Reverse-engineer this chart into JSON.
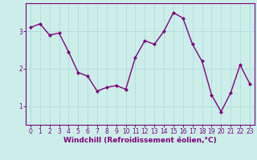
{
  "x": [
    0,
    1,
    2,
    3,
    4,
    5,
    6,
    7,
    8,
    9,
    10,
    11,
    12,
    13,
    14,
    15,
    16,
    17,
    18,
    19,
    20,
    21,
    22,
    23
  ],
  "y": [
    3.1,
    3.2,
    2.9,
    2.95,
    2.45,
    1.9,
    1.8,
    1.4,
    1.5,
    1.55,
    1.45,
    2.3,
    2.75,
    2.65,
    3.0,
    3.5,
    3.35,
    2.65,
    2.2,
    1.3,
    0.85,
    1.35,
    2.1,
    1.6
  ],
  "line_color": "#800080",
  "marker": "D",
  "marker_size": 2.0,
  "line_width": 1.0,
  "bg_color": "#cceee8",
  "grid_color": "#aadddd",
  "xlabel": "Windchill (Refroidissement éolien,°C)",
  "xlabel_color": "#800080",
  "tick_color": "#800080",
  "spine_color": "#800080",
  "ylim": [
    0.5,
    3.75
  ],
  "xlim": [
    -0.5,
    23.5
  ],
  "yticks": [
    1,
    2,
    3
  ],
  "xticks": [
    0,
    1,
    2,
    3,
    4,
    5,
    6,
    7,
    8,
    9,
    10,
    11,
    12,
    13,
    14,
    15,
    16,
    17,
    18,
    19,
    20,
    21,
    22,
    23
  ],
  "font_size_xlabel": 6.5,
  "font_size_ticks": 5.5
}
